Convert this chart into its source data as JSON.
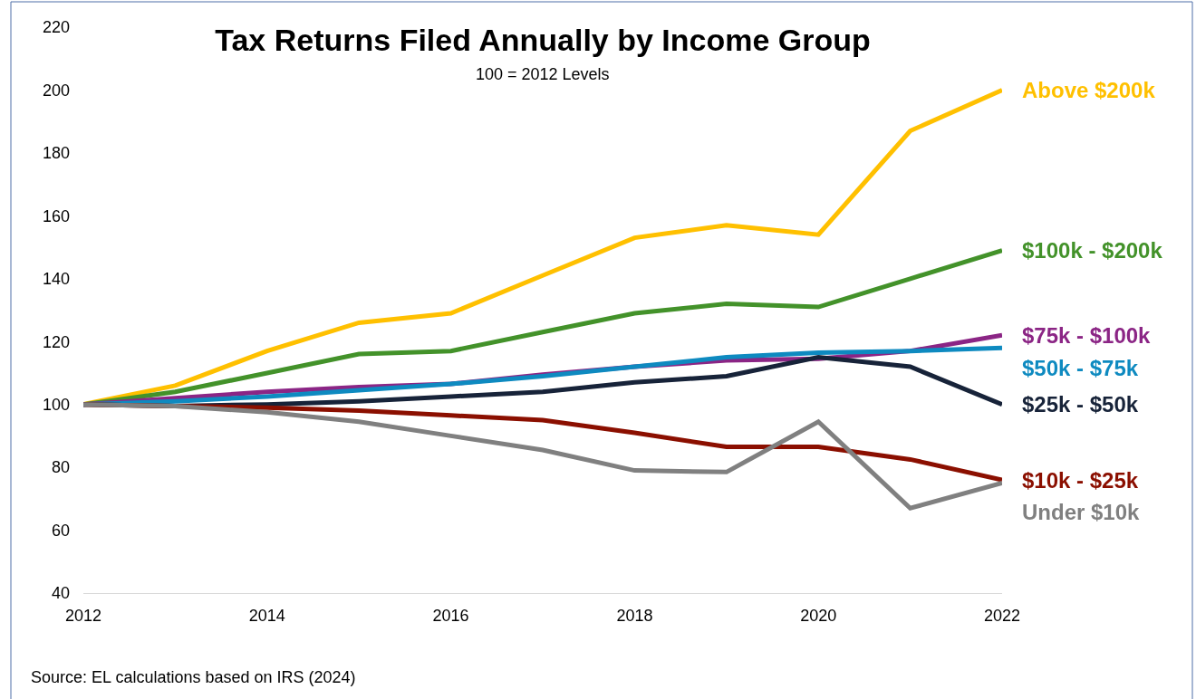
{
  "chart_data": {
    "type": "line",
    "title": "Tax Returns Filed Annually by Income Group",
    "subtitle": "100 = 2012 Levels",
    "x": [
      2012,
      2013,
      2014,
      2015,
      2016,
      2017,
      2018,
      2019,
      2020,
      2021,
      2022
    ],
    "series": [
      {
        "name": "Above $200k",
        "color": "#ffc000",
        "values": [
          100,
          106,
          117,
          126,
          129,
          141,
          153,
          157,
          154,
          187,
          200
        ]
      },
      {
        "name": "$100k - $200k",
        "color": "#43922a",
        "values": [
          100,
          104,
          110,
          116,
          117,
          123,
          129,
          132,
          131,
          140,
          149
        ]
      },
      {
        "name": "$75k - $100k",
        "color": "#8b2585",
        "values": [
          100,
          102,
          104,
          105.5,
          106.5,
          109.5,
          112,
          114,
          114.5,
          117,
          122
        ]
      },
      {
        "name": "$50k - $75k",
        "color": "#0e8ac0",
        "values": [
          100,
          101,
          102.5,
          104.5,
          106.5,
          109,
          112,
          115,
          116.5,
          117,
          118
        ]
      },
      {
        "name": "$25k - $50k",
        "color": "#172339",
        "values": [
          100,
          99.5,
          100,
          101,
          102.5,
          104,
          107,
          109,
          115,
          112,
          100
        ]
      },
      {
        "name": "$10k - $25k",
        "color": "#8b0f00",
        "values": [
          100,
          99.5,
          99,
          98,
          96.5,
          95,
          91,
          86.5,
          86.5,
          82.5,
          76
        ]
      },
      {
        "name": "Under $10k",
        "color": "#808080",
        "values": [
          100,
          99.5,
          97.5,
          94.5,
          90,
          85.5,
          79,
          78.5,
          94.5,
          67,
          75
        ]
      }
    ],
    "xlim": [
      2012,
      2022
    ],
    "xticks": [
      2012,
      2014,
      2016,
      2018,
      2020,
      2022
    ],
    "ylim": [
      40,
      220
    ],
    "yticks": [
      40,
      60,
      80,
      100,
      120,
      140,
      160,
      180,
      200,
      220
    ],
    "grid": false,
    "legend": false,
    "marker": "none",
    "line_style": "solid",
    "annotations": [
      "Source: EL calculations based on IRS (2024)"
    ]
  }
}
